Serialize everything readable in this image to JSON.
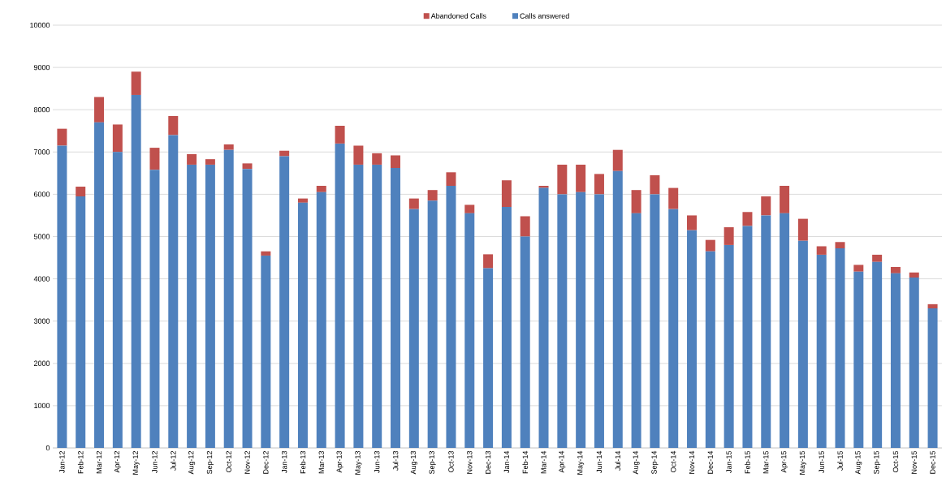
{
  "chart_data": {
    "type": "bar",
    "stacked": true,
    "categories": [
      "Jan-12",
      "Feb-12",
      "Mar-12",
      "Apr-12",
      "May-12",
      "Jun-12",
      "Jul-12",
      "Aug-12",
      "Sep-12",
      "Oct-12",
      "Nov-12",
      "Dec-12",
      "Jan-13",
      "Feb-13",
      "Mar-13",
      "Apr-13",
      "May-13",
      "Jun-13",
      "Jul-13",
      "Aug-13",
      "Sep-13",
      "Oct-13",
      "Nov-13",
      "Dec-13",
      "Jan-14",
      "Feb-14",
      "Mar-14",
      "Apr-14",
      "May-14",
      "Jun-14",
      "Jul-14",
      "Aug-14",
      "Sep-14",
      "Oct-14",
      "Nov-14",
      "Dec-14",
      "Jan-15",
      "Feb-15",
      "Mar-15",
      "Apr-15",
      "May-15",
      "Jun-15",
      "Jul-15",
      "Aug-15",
      "Sep-15",
      "Oct-15",
      "Nov-15",
      "Dec-15"
    ],
    "series": [
      {
        "name": "Calls answered",
        "color": "#4f81bd",
        "values": [
          7150,
          5950,
          7700,
          7000,
          8350,
          6580,
          7400,
          6700,
          6700,
          7050,
          6600,
          4550,
          6900,
          5800,
          6050,
          7200,
          6700,
          6700,
          6620,
          5650,
          5850,
          6200,
          5550,
          4250,
          5700,
          5000,
          6150,
          6000,
          6050,
          6000,
          6550,
          5550,
          6000,
          5650,
          5150,
          4650,
          4800,
          5250,
          5500,
          5550,
          4900,
          4570,
          4720,
          4170,
          4400,
          4130,
          4030,
          3300
        ]
      },
      {
        "name": "Abandoned Calls",
        "color": "#c0504d",
        "values": [
          400,
          230,
          600,
          650,
          550,
          520,
          450,
          250,
          130,
          130,
          130,
          100,
          130,
          100,
          150,
          420,
          450,
          270,
          300,
          250,
          250,
          320,
          200,
          330,
          630,
          480,
          50,
          700,
          650,
          480,
          500,
          550,
          450,
          500,
          350,
          270,
          420,
          330,
          450,
          650,
          520,
          200,
          150,
          160,
          170,
          150,
          120,
          100
        ]
      }
    ],
    "ylim": [
      0,
      10000
    ],
    "yticks": [
      0,
      1000,
      2000,
      3000,
      4000,
      5000,
      6000,
      7000,
      8000,
      9000,
      10000
    ],
    "grid": "y",
    "legend": "top"
  }
}
